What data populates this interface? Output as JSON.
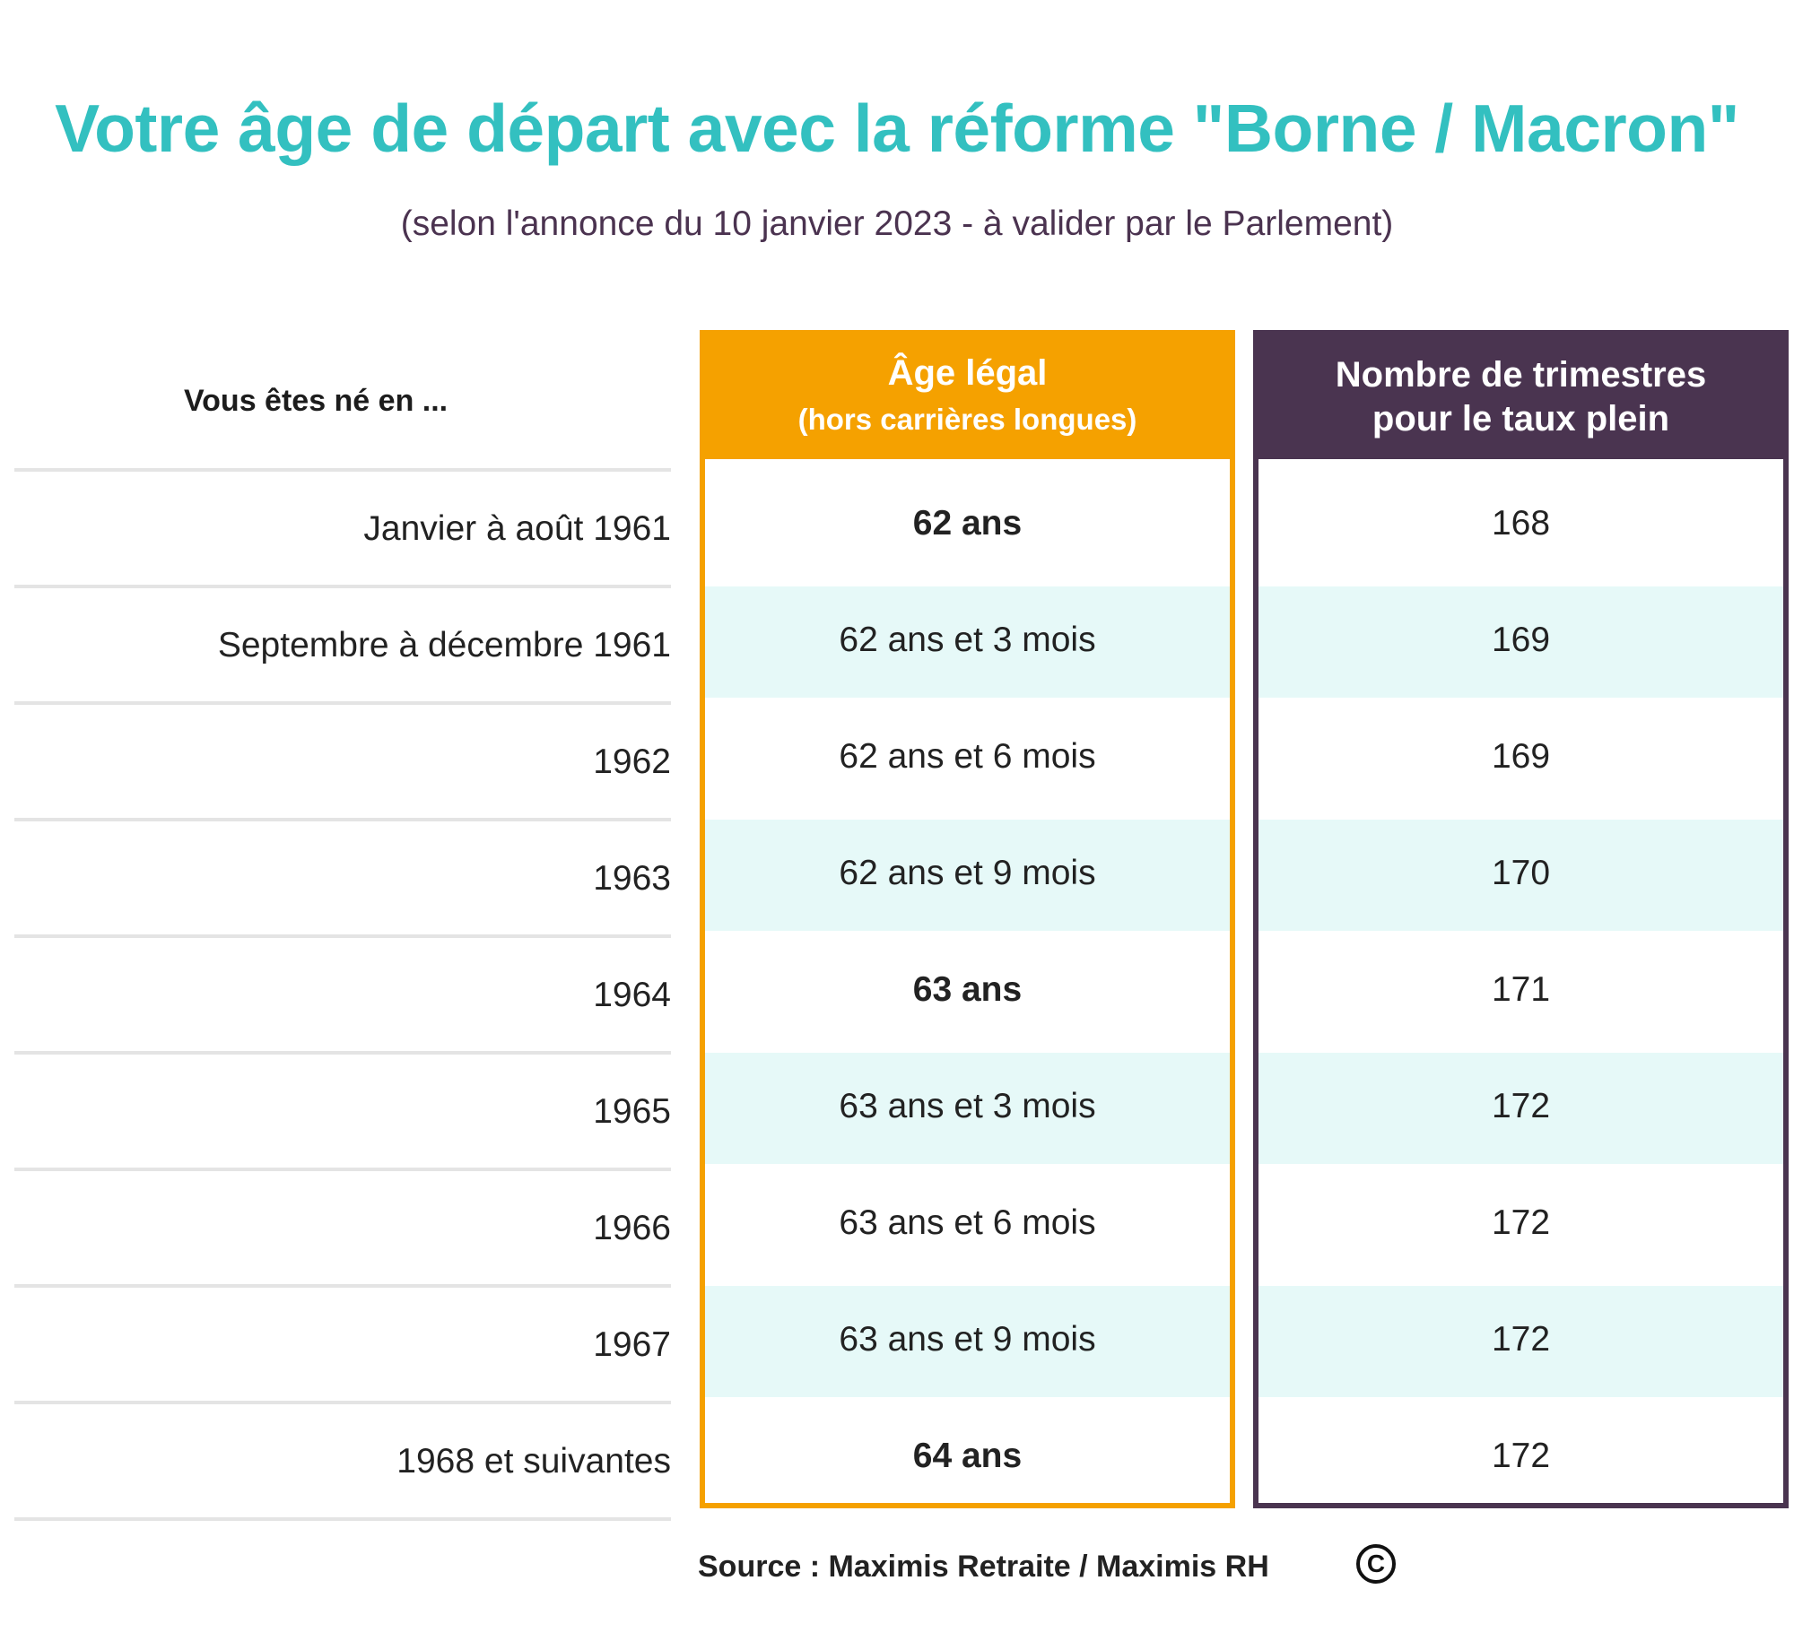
{
  "title": "Votre âge de départ avec la réforme \"Borne / Macron\"",
  "subtitle": "(selon l'annonce du 10 janvier 2023 - à valider par le Parlement)",
  "colors": {
    "title": "#33c0c0",
    "subtitle": "#4b3350",
    "age_column": "#f5a100",
    "trimestres_column": "#4a3450",
    "stripe": "#e6f9f8",
    "row_line": "#e4e4e4"
  },
  "chart_data": {
    "type": "table",
    "columns": [
      {
        "label": "Vous êtes né en ..."
      },
      {
        "label": "Âge légal",
        "sublabel": "(hors carrières longues)"
      },
      {
        "label": "Nombre de trimestres",
        "sublabel": "pour le taux plein"
      }
    ],
    "rows": [
      {
        "birth": "Janvier à août 1961",
        "age": "62 ans",
        "age_bold": true,
        "trimestres": "168"
      },
      {
        "birth": "Septembre à décembre 1961",
        "age": "62 ans et 3 mois",
        "age_bold": false,
        "trimestres": "169"
      },
      {
        "birth": "1962",
        "age": "62 ans et 6 mois",
        "age_bold": false,
        "trimestres": "169"
      },
      {
        "birth": "1963",
        "age": "62 ans et 9 mois",
        "age_bold": false,
        "trimestres": "170"
      },
      {
        "birth": "1964",
        "age": "63 ans",
        "age_bold": true,
        "trimestres": "171"
      },
      {
        "birth": "1965",
        "age": "63 ans et 3 mois",
        "age_bold": false,
        "trimestres": "172"
      },
      {
        "birth": "1966",
        "age": "63 ans et 6 mois",
        "age_bold": false,
        "trimestres": "172"
      },
      {
        "birth": "1967",
        "age": "63 ans et 9 mois",
        "age_bold": false,
        "trimestres": "172"
      },
      {
        "birth": "1968 et suivantes",
        "age": "64 ans",
        "age_bold": true,
        "trimestres": "172"
      }
    ]
  },
  "source": "Source : Maximis Retraite / Maximis RH",
  "copyright_symbol": "C"
}
